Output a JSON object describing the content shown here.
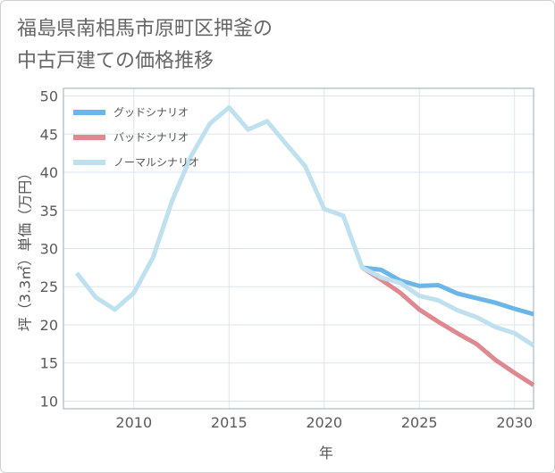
{
  "title_lines": [
    "福島県南相馬市原町区押釜の",
    "中古戸建ての価格推移"
  ],
  "chart_data": {
    "type": "line",
    "title": "福島県南相馬市原町区押釜の中古戸建ての価格推移",
    "xlabel": "年",
    "ylabel": "坪（3.3㎡）単価（万円）",
    "xlim": [
      2006.3,
      2031.0
    ],
    "ylim": [
      9,
      51
    ],
    "xticks": [
      2010,
      2015,
      2020,
      2025,
      2030
    ],
    "yticks": [
      10,
      15,
      20,
      25,
      30,
      35,
      40,
      45,
      50
    ],
    "grid": true,
    "legend_position": "top-left",
    "series": [
      {
        "name": "グッドシナリオ",
        "color": "#6bb6e8",
        "x": [
          2022,
          2023,
          2024,
          2025,
          2026,
          2027,
          2028,
          2029,
          2030,
          2031
        ],
        "values": [
          27.5,
          27.2,
          25.8,
          25.1,
          25.2,
          24.1,
          23.5,
          22.9,
          22.1,
          21.4
        ]
      },
      {
        "name": "バッドシナリオ",
        "color": "#de8890",
        "x": [
          2022,
          2023,
          2024,
          2025,
          2026,
          2027,
          2028,
          2029,
          2030,
          2031
        ],
        "values": [
          27.5,
          25.9,
          24.2,
          22.0,
          20.4,
          18.9,
          17.5,
          15.4,
          13.7,
          12.1
        ]
      },
      {
        "name": "ノーマルシナリオ",
        "color": "#bfe0ee",
        "x": [
          2007,
          2008,
          2009,
          2010,
          2011,
          2012,
          2013,
          2014,
          2015,
          2016,
          2017,
          2018,
          2019,
          2020,
          2021,
          2022,
          2023,
          2024,
          2025,
          2026,
          2027,
          2028,
          2029,
          2030,
          2031
        ],
        "values": [
          26.8,
          23.6,
          22.0,
          24.2,
          28.8,
          36.2,
          42.1,
          46.4,
          48.5,
          45.6,
          46.7,
          43.7,
          40.8,
          35.2,
          34.3,
          27.5,
          26.2,
          25.5,
          23.8,
          23.2,
          21.9,
          21.0,
          19.7,
          18.9,
          17.3
        ]
      }
    ]
  }
}
